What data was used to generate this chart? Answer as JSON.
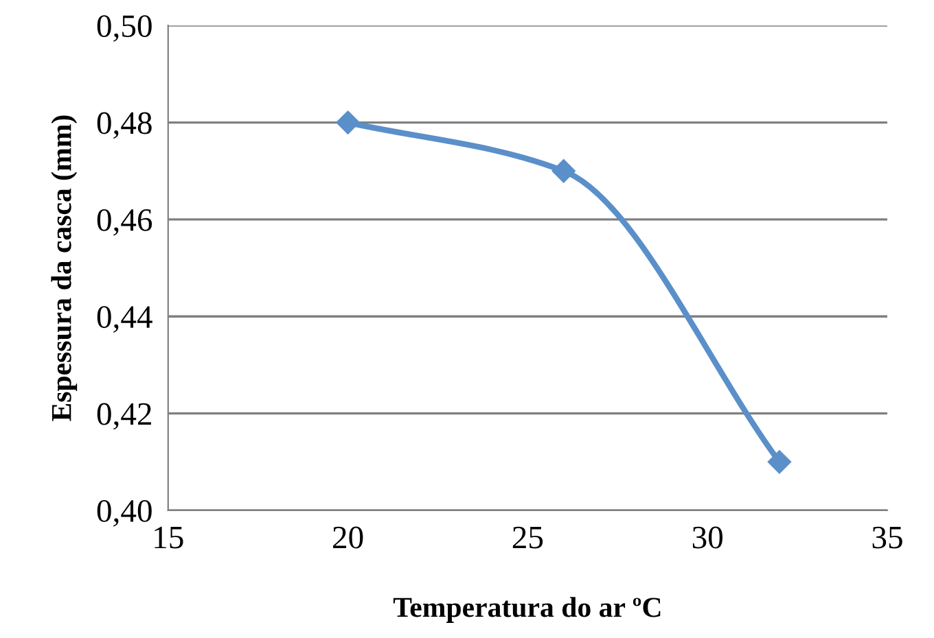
{
  "chart_data": {
    "type": "line",
    "xlabel": "Temperatura do ar ºC",
    "ylabel": "Espessura da casca (mm)",
    "x": [
      20,
      26,
      32
    ],
    "series": [
      {
        "color": "#5b8fc9",
        "values": [
          0.48,
          0.47,
          0.41
        ]
      }
    ],
    "xlim": [
      15,
      35
    ],
    "xticks": [
      15,
      20,
      25,
      30,
      35
    ],
    "ylim": [
      0.4,
      0.5
    ],
    "yticks": [
      {
        "value": 0.4,
        "label": "0,40"
      },
      {
        "value": 0.42,
        "label": "0,42"
      },
      {
        "value": 0.44,
        "label": "0,44"
      },
      {
        "value": 0.46,
        "label": "0,46"
      },
      {
        "value": 0.48,
        "label": "0,48"
      },
      {
        "value": 0.5,
        "label": "0,50"
      }
    ],
    "grid": "y",
    "marker": "diamond",
    "line_style": "solid"
  }
}
